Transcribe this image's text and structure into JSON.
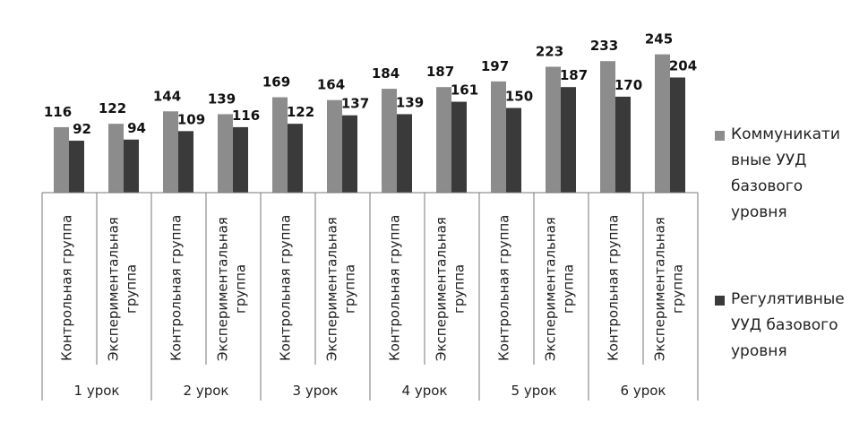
{
  "chart_data": {
    "type": "bar",
    "title": "",
    "xlabel": "",
    "ylabel": "",
    "ylim": [
      0,
      260
    ],
    "grid": false,
    "legend_position": "right",
    "groups": [
      "1 урок",
      "2 урок",
      "3 урок",
      "4 урок",
      "5 урок",
      "6 урок"
    ],
    "subcategories": [
      "Контрольная группа",
      "Экспериментальная группа"
    ],
    "series": [
      {
        "name": "Коммуникативные УУД базового уровня",
        "color": "#8c8c8c",
        "values": [
          116,
          122,
          144,
          139,
          169,
          164,
          184,
          187,
          197,
          223,
          233,
          245
        ]
      },
      {
        "name": "Регулятивные УУД базового уровня",
        "color": "#3a3a3a",
        "values": [
          92,
          94,
          109,
          116,
          122,
          137,
          139,
          161,
          150,
          187,
          170,
          204
        ]
      }
    ]
  },
  "legend": {
    "items": [
      {
        "lines": [
          "Коммуникати",
          "вные УУД",
          "базового",
          "уровня"
        ]
      },
      {
        "lines": [
          "Регулятивные",
          "УУД базового",
          "уровня"
        ]
      }
    ]
  },
  "sublabels": {
    "control": [
      "Контрольная группа"
    ],
    "experimental": [
      "Экспериментальная",
      "группа"
    ]
  }
}
